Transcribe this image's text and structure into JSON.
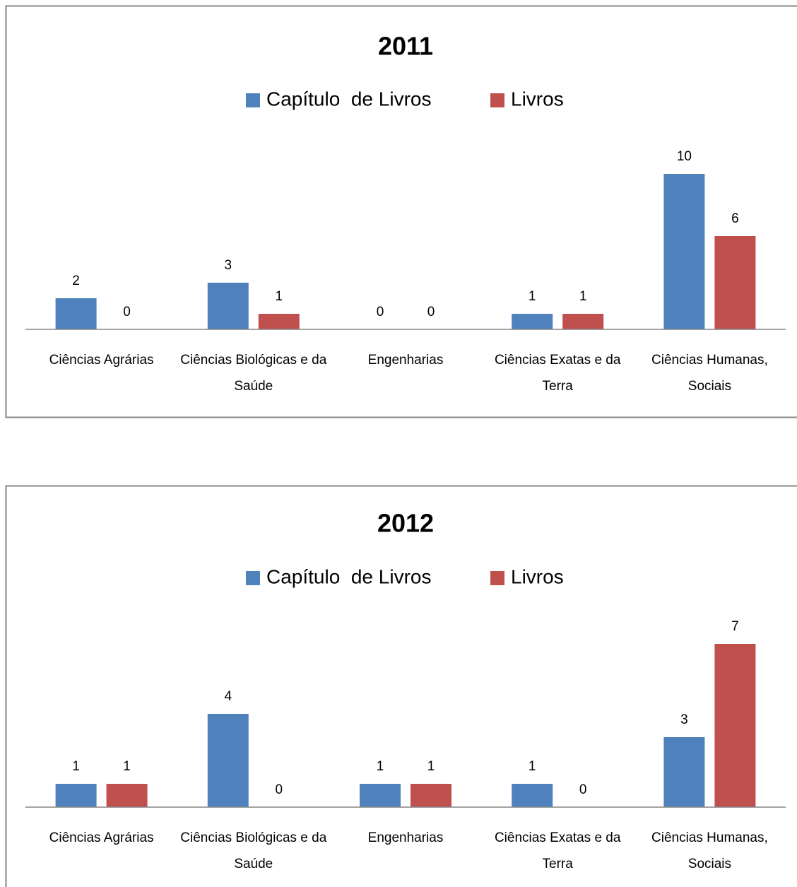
{
  "chart_data": [
    {
      "type": "bar",
      "title": "2011",
      "categories": [
        "Ciências Agrárias",
        "Ciências Biológicas e da Saúde",
        "Engenharias",
        "Ciências Exatas e da Terra",
        "Ciências Humanas, Sociais"
      ],
      "series": [
        {
          "name": "Capítulo  de Livros",
          "color": "#4f81bd",
          "values": [
            2,
            3,
            0,
            1,
            10
          ]
        },
        {
          "name": "Livros",
          "color": "#c0504d",
          "values": [
            0,
            1,
            0,
            1,
            6
          ]
        }
      ],
      "ylim": [
        0,
        10
      ],
      "legend": "top"
    },
    {
      "type": "bar",
      "title": "2012",
      "categories": [
        "Ciências Agrárias",
        "Ciências Biológicas e da Saúde",
        "Engenharias",
        "Ciências Exatas e da Terra",
        "Ciências Humanas, Sociais"
      ],
      "series": [
        {
          "name": "Capítulo  de Livros",
          "color": "#4f81bd",
          "values": [
            1,
            4,
            1,
            1,
            3
          ]
        },
        {
          "name": "Livros",
          "color": "#c0504d",
          "values": [
            1,
            0,
            1,
            0,
            7
          ]
        }
      ],
      "ylim": [
        0,
        7
      ],
      "legend": "top"
    }
  ]
}
